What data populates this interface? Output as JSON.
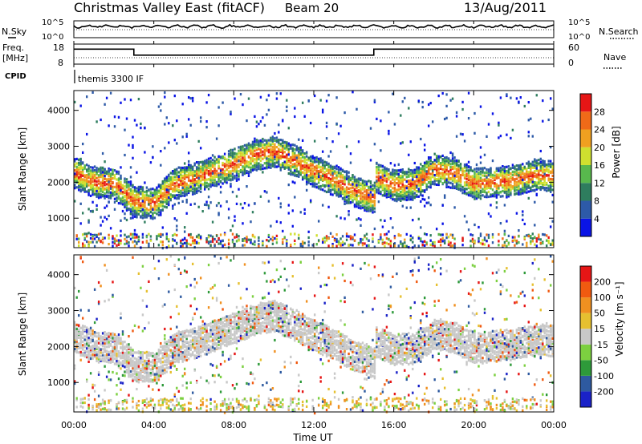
{
  "header": {
    "title": "Christmas Valley East (fitACF)",
    "beam": "Beam 20",
    "date": "13/Aug/2011"
  },
  "labels": {
    "nsky": "N.Sky",
    "nsearch": "N.Search",
    "freq_line1": "Freq.",
    "freq_line2": "[MHz]",
    "nave": "Nave",
    "cpid": "CPID",
    "cpid_value": "themis 3300 IF"
  },
  "chart_data": [
    {
      "type": "line",
      "name": "noise",
      "yticks_left": [
        "10^5",
        "10^0"
      ],
      "yticks_right": [
        "10^5",
        "10^0"
      ],
      "note": "N.Sky solid, N.Search dotted"
    },
    {
      "type": "line",
      "name": "freq-nave",
      "yticks_left": [
        "18",
        "8"
      ],
      "yticks_right": [
        "60",
        "0"
      ],
      "freq_steps": [
        {
          "from": 0,
          "to": 3,
          "value": 15.5
        },
        {
          "from": 3,
          "to": 15,
          "value": 12.5
        },
        {
          "from": 15,
          "to": 24,
          "value": 15.5
        }
      ]
    },
    {
      "type": "heatmap",
      "name": "power",
      "ylabel": "Slant Range [km]",
      "yticks": [
        "1000",
        "2000",
        "3000",
        "4000"
      ],
      "ylim": [
        180,
        4550
      ],
      "xlim": [
        0,
        24
      ],
      "colorbar": {
        "label": "Power [dB]",
        "ticks": [
          "4",
          "8",
          "12",
          "16",
          "20",
          "24",
          "28"
        ],
        "colors": [
          "#0a14e6",
          "#2d5aa8",
          "#2e7d5e",
          "#58b84d",
          "#cfe02f",
          "#f0a020",
          "#f06a18",
          "#e61616"
        ]
      },
      "echo_bands": [
        {
          "t": 0,
          "r": 2300
        },
        {
          "t": 1,
          "r": 2050
        },
        {
          "t": 2,
          "r": 2000
        },
        {
          "t": 3,
          "r": 1500
        },
        {
          "t": 4,
          "r": 1450
        },
        {
          "t": 5,
          "r": 2000
        },
        {
          "t": 6,
          "r": 2150
        },
        {
          "t": 7,
          "r": 2350
        },
        {
          "t": 8,
          "r": 2550
        },
        {
          "t": 9,
          "r": 2800
        },
        {
          "t": 10,
          "r": 2900
        },
        {
          "t": 11,
          "r": 2650
        },
        {
          "t": 12,
          "r": 2350
        },
        {
          "t": 13,
          "r": 2100
        },
        {
          "t": 14,
          "r": 1800
        },
        {
          "t": 15,
          "r": 1600
        },
        {
          "t": 15.01,
          "r": 2200
        },
        {
          "t": 16,
          "r": 1950
        },
        {
          "t": 17,
          "r": 2000
        },
        {
          "t": 18,
          "r": 2400
        },
        {
          "t": 19,
          "r": 2300
        },
        {
          "t": 20,
          "r": 2000
        },
        {
          "t": 21,
          "r": 2050
        },
        {
          "t": 22,
          "r": 2100
        },
        {
          "t": 23,
          "r": 2250
        },
        {
          "t": 24,
          "r": 2200
        }
      ]
    },
    {
      "type": "heatmap",
      "name": "velocity",
      "ylabel": "Slant Range [km]",
      "yticks": [
        "1000",
        "2000",
        "3000",
        "4000"
      ],
      "ylim": [
        180,
        4550
      ],
      "xlim": [
        0,
        24
      ],
      "xticks": [
        "00:00",
        "04:00",
        "08:00",
        "12:00",
        "16:00",
        "20:00",
        "00:00"
      ],
      "xlabel": "Time UT",
      "colorbar": {
        "label": "Velocity [m s⁻¹]",
        "ticks": [
          "200",
          "100",
          "50",
          "15",
          "-15",
          "-50",
          "-100",
          "-200"
        ],
        "colors": [
          "#1a22c8",
          "#2e5aa0",
          "#2e9a3a",
          "#7cd040",
          "#c8c8c8",
          "#e6c030",
          "#f09020",
          "#f05a10",
          "#e61616"
        ]
      }
    }
  ]
}
